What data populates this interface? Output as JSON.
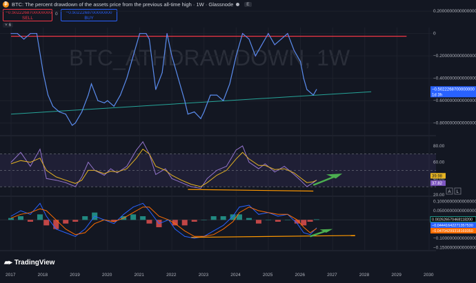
{
  "header": {
    "symbol_icon": "bitcoin-icon",
    "title": "BTC: The percent drawdown of the assets price from the previous all-time high · 1W · Glassnode",
    "badge": "E"
  },
  "trade": {
    "sell_price": "−0.5022268700000000",
    "sell_label": "SELL",
    "spread": "0",
    "buy_price": "−0.5022268700000000",
    "buy_label": "BUY"
  },
  "legend_toggle": "6",
  "watermark": "BTC_ATHDRAWDOWN, 1W",
  "logo": {
    "text": "TradingView"
  },
  "colors": {
    "bg": "#131722",
    "grid": "#2a2e39",
    "price": "#5b8def",
    "price_hi": "#8c5cf0",
    "ath": "#f23645",
    "support": "#26a69a",
    "rsi": "#9575cd",
    "rsi_ma": "#e6b422",
    "band": "#7e57c2",
    "macd": "#2962ff",
    "signal": "#ff6d00",
    "hist_pos": "#26a69a",
    "hist_neg": "#ef5350",
    "arrow": "#4caf50",
    "trend": "#ff9800"
  },
  "chart_data": [
    {
      "type": "line",
      "panel": "main",
      "title": "BTC: The percent drawdown of the assets price from the previous all-time high · 1W · Glassnode",
      "x": [
        2017.0,
        2017.2,
        2017.4,
        2017.6,
        2017.8,
        2018.0,
        2018.15,
        2018.3,
        2018.5,
        2018.7,
        2018.9,
        2019.0,
        2019.2,
        2019.4,
        2019.5,
        2019.7,
        2019.9,
        2020.0,
        2020.2,
        2020.4,
        2020.6,
        2020.8,
        2021.0,
        2021.2,
        2021.3,
        2021.5,
        2021.7,
        2021.85,
        2022.0,
        2022.2,
        2022.4,
        2022.5,
        2022.7,
        2022.9,
        2023.0,
        2023.2,
        2023.4,
        2023.6,
        2023.8,
        2024.0,
        2024.2,
        2024.4,
        2024.6,
        2024.8,
        2025.0,
        2025.2,
        2025.4,
        2025.6,
        2025.8,
        2026.0,
        2026.1,
        2026.2,
        2026.4,
        2026.5
      ],
      "y": [
        0,
        0,
        -0.05,
        0,
        0,
        -0.35,
        -0.55,
        -0.65,
        -0.7,
        -0.72,
        -0.82,
        -0.8,
        -0.7,
        -0.55,
        -0.45,
        -0.6,
        -0.62,
        -0.6,
        -0.65,
        -0.55,
        -0.4,
        -0.2,
        0,
        0,
        -0.05,
        -0.5,
        -0.35,
        0,
        -0.2,
        -0.4,
        -0.6,
        -0.72,
        -0.7,
        -0.76,
        -0.7,
        -0.55,
        -0.55,
        -0.6,
        -0.45,
        -0.2,
        0,
        -0.05,
        -0.2,
        -0.1,
        0,
        -0.1,
        -0.05,
        0,
        -0.15,
        -0.25,
        -0.4,
        -0.5,
        -0.55,
        -0.5
      ],
      "ylim": [
        -0.9,
        0.25
      ],
      "yticks": [
        "0.2000000000000000",
        "0",
        "−0.2000000000000000",
        "−0.4000000000000000",
        "−0.6000000000000001",
        "−0.8000000000000001"
      ],
      "last_label": "−0.5022268700000000",
      "last_sub": "1d 3h",
      "support_line": {
        "x": [
          2017.0,
          2027.0
        ],
        "y": [
          -0.72,
          -0.52
        ]
      }
    },
    {
      "type": "line",
      "panel": "rsi",
      "x": [
        2017.0,
        2017.3,
        2017.6,
        2017.9,
        2018.1,
        2018.4,
        2018.7,
        2019.0,
        2019.2,
        2019.4,
        2019.6,
        2019.9,
        2020.1,
        2020.3,
        2020.6,
        2020.9,
        2021.1,
        2021.3,
        2021.5,
        2021.8,
        2022.0,
        2022.3,
        2022.6,
        2022.9,
        2023.1,
        2023.4,
        2023.7,
        2024.0,
        2024.2,
        2024.4,
        2024.7,
        2024.9,
        2025.2,
        2025.5,
        2025.8,
        2026.0,
        2026.2,
        2026.4,
        2026.5
      ],
      "y": [
        60,
        72,
        55,
        76,
        40,
        38,
        35,
        30,
        42,
        60,
        50,
        44,
        52,
        47,
        55,
        75,
        85,
        70,
        45,
        52,
        40,
        35,
        30,
        28,
        40,
        50,
        55,
        75,
        80,
        60,
        52,
        58,
        48,
        55,
        45,
        38,
        30,
        35,
        38
      ],
      "ma": [
        58,
        62,
        60,
        65,
        50,
        42,
        38,
        34,
        38,
        50,
        50,
        46,
        49,
        48,
        52,
        65,
        76,
        70,
        55,
        50,
        44,
        38,
        33,
        30,
        35,
        44,
        50,
        64,
        72,
        64,
        56,
        56,
        51,
        52,
        47,
        41,
        35,
        36,
        38
      ],
      "ylim": [
        20,
        90
      ],
      "yticks": [
        "80.00",
        "60.00",
        "40.00",
        "20.00"
      ],
      "last_rsi": "39.98",
      "last_ma": "37.82",
      "divergence_line": {
        "x": [
          2022.5,
          2026.4
        ],
        "y": [
          30,
          28
        ]
      }
    },
    {
      "type": "bar",
      "panel": "macd",
      "x": [
        2017.0,
        2017.3,
        2017.6,
        2017.9,
        2018.1,
        2018.4,
        2018.7,
        2019.0,
        2019.3,
        2019.6,
        2019.9,
        2020.2,
        2020.5,
        2020.8,
        2021.1,
        2021.3,
        2021.6,
        2021.9,
        2022.1,
        2022.4,
        2022.7,
        2023.0,
        2023.3,
        2023.6,
        2023.9,
        2024.1,
        2024.4,
        2024.7,
        2025.0,
        2025.3,
        2025.6,
        2025.9,
        2026.1,
        2026.3,
        2026.5
      ],
      "macd": [
        0.02,
        0.05,
        0.03,
        0.09,
        0.02,
        -0.05,
        -0.07,
        -0.09,
        -0.05,
        0.02,
        0.0,
        -0.02,
        0.03,
        0.07,
        0.09,
        0.05,
        -0.02,
        0.0,
        -0.05,
        -0.09,
        -0.1,
        -0.09,
        -0.06,
        -0.03,
        0.02,
        0.07,
        0.08,
        0.03,
        0.04,
        0.02,
        0.03,
        -0.02,
        -0.07,
        -0.08,
        -0.044
      ],
      "signal": [
        0.01,
        0.03,
        0.04,
        0.06,
        0.05,
        0.0,
        -0.05,
        -0.08,
        -0.07,
        -0.02,
        0.0,
        -0.01,
        0.01,
        0.04,
        0.07,
        0.07,
        0.02,
        0.0,
        -0.02,
        -0.06,
        -0.09,
        -0.09,
        -0.08,
        -0.05,
        -0.01,
        0.04,
        0.07,
        0.05,
        0.04,
        0.03,
        0.03,
        0.0,
        -0.04,
        -0.07,
        -0.047
      ],
      "hist": [
        0.01,
        0.02,
        -0.01,
        0.03,
        -0.03,
        -0.05,
        -0.02,
        -0.01,
        0.02,
        0.04,
        0.0,
        -0.01,
        0.02,
        0.03,
        0.02,
        -0.02,
        -0.04,
        0.0,
        -0.03,
        -0.03,
        -0.01,
        0.0,
        0.02,
        0.02,
        0.03,
        0.03,
        0.01,
        -0.02,
        0.0,
        -0.01,
        0.0,
        -0.02,
        -0.03,
        -0.01,
        0.003
      ],
      "ylim": [
        -0.16,
        0.11
      ],
      "yticks": [
        "0.1000000000000000",
        "0.05000000000000000",
        "0",
        "−0.05000000000000000",
        "−0.1000000000000000",
        "−0.1500000000000000"
      ],
      "last_hist": "0.002626570468118200",
      "last_macd": "−0.04441642271357530",
      "last_signal": "−0.04704299318169350",
      "divergence_line": {
        "x": [
          2022.6,
          2027.7
        ],
        "y": [
          -0.095,
          -0.085
        ]
      }
    }
  ],
  "xaxis": {
    "ticks": [
      "2017",
      "2018",
      "2019",
      "2020",
      "2021",
      "2022",
      "2023",
      "2024",
      "2025",
      "2026",
      "2027",
      "2028",
      "2029",
      "2030"
    ]
  }
}
